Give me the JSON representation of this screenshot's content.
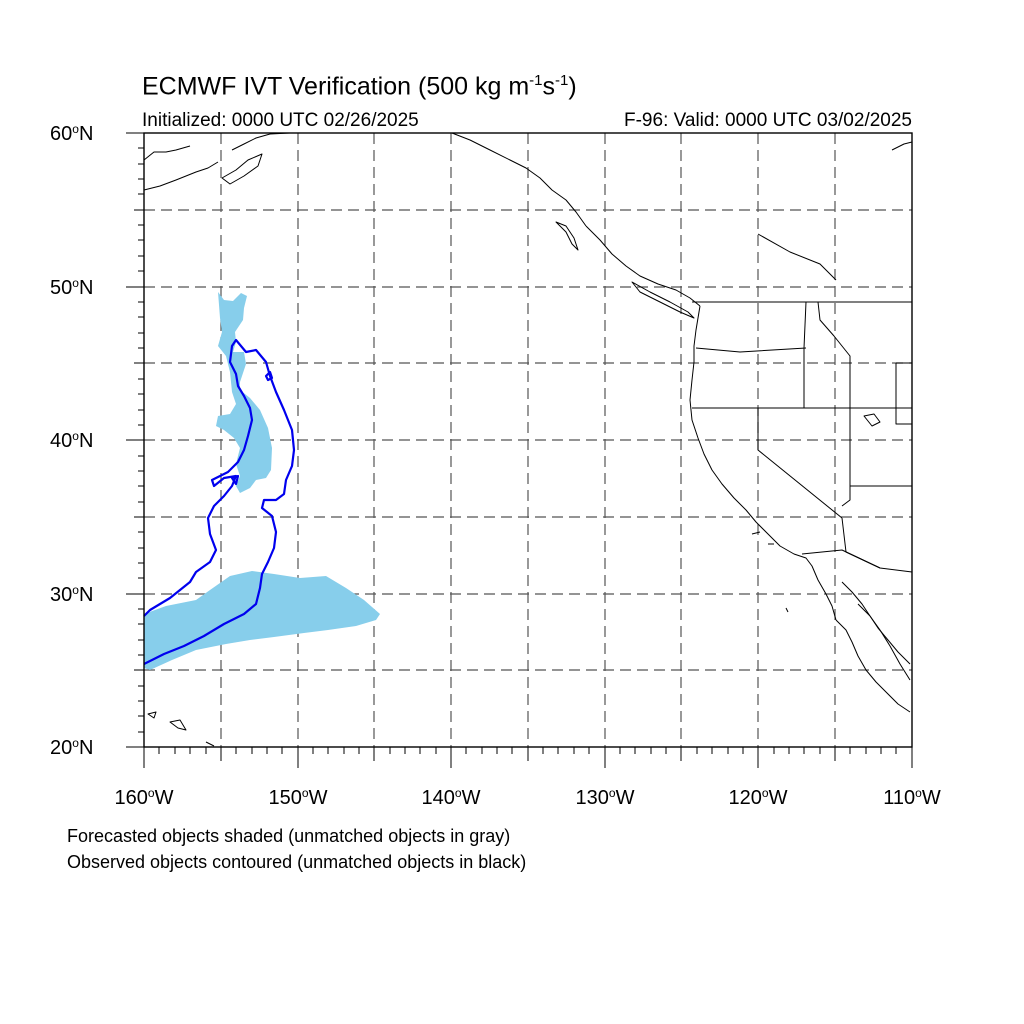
{
  "title": {
    "prefix": "ECMWF IVT Verification (500 kg m",
    "exp1": "-1",
    "mid": "s",
    "exp2": "-1",
    "suffix": ")"
  },
  "initialized": "Initialized: 0000 UTC 02/26/2025",
  "valid": "F-96: Valid: 0000 UTC 03/02/2025",
  "lat_labels": [
    {
      "num": "60",
      "hem": "N"
    },
    {
      "num": "50",
      "hem": "N"
    },
    {
      "num": "40",
      "hem": "N"
    },
    {
      "num": "30",
      "hem": "N"
    },
    {
      "num": "20",
      "hem": "N"
    }
  ],
  "lon_labels": [
    {
      "num": "160",
      "hem": "W"
    },
    {
      "num": "150",
      "hem": "W"
    },
    {
      "num": "140",
      "hem": "W"
    },
    {
      "num": "130",
      "hem": "W"
    },
    {
      "num": "120",
      "hem": "W"
    },
    {
      "num": "110",
      "hem": "W"
    }
  ],
  "deg_symbol": "o",
  "notes": {
    "forecast": "Forecasted objects shaded (unmatched objects in gray)",
    "observed": "Observed objects contoured (unmatched objects in black)"
  },
  "map_extent": {
    "lon_min": -160,
    "lon_max": -110,
    "lat_min": 20,
    "lat_max": 60
  },
  "colors": {
    "forecast_fill": "#87ceeb",
    "observed_contour": "#0000ee",
    "coastline": "#000000",
    "grid": "#555555"
  }
}
